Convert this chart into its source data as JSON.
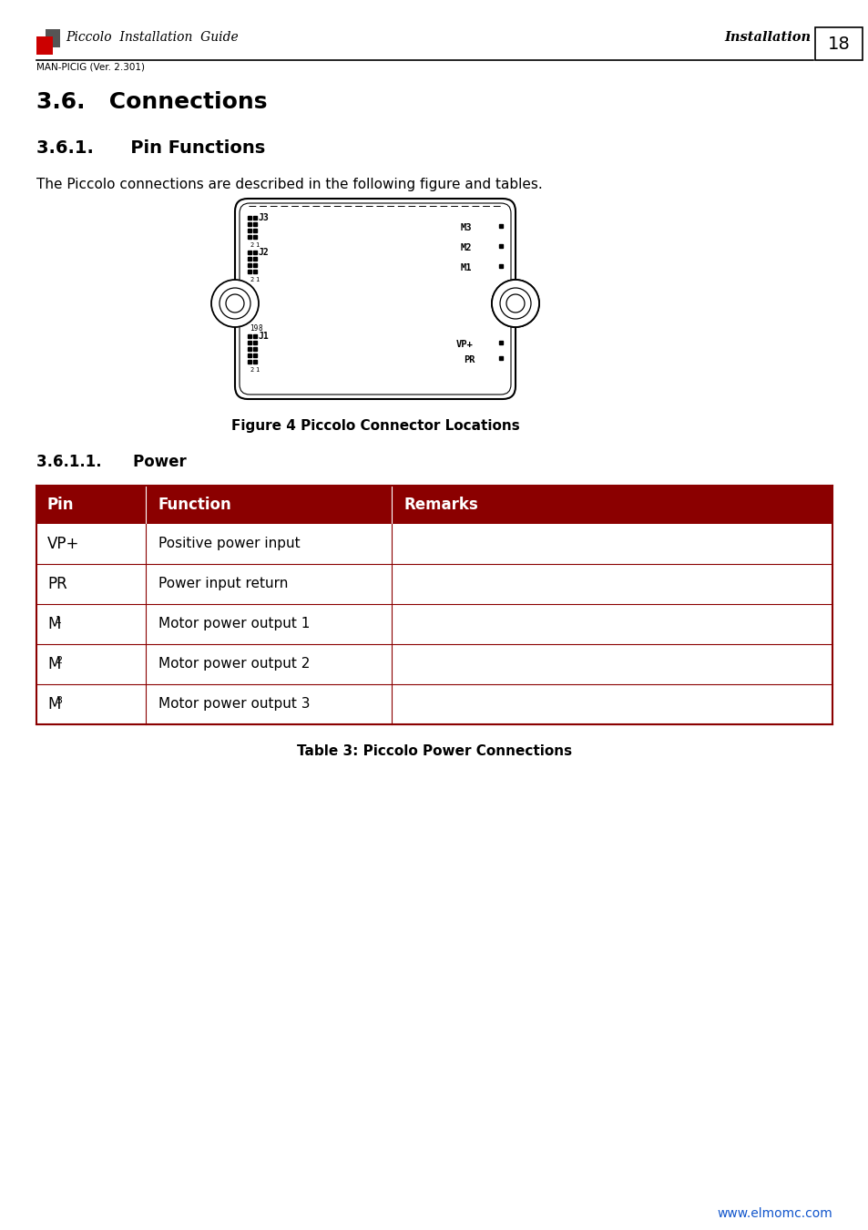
{
  "page_number": "18",
  "header_left_title": "Piccolo  Installation  Guide",
  "header_right": "Installation",
  "header_sub": "MAN-PICIG (Ver. 2.301)",
  "section_title": "3.6.   Connections",
  "subsection_title": "3.6.1.      Pin Functions",
  "intro_text": "The Piccolo connections are described in the following figure and tables.",
  "figure_caption": "Figure 4 Piccolo Connector Locations",
  "subsection2_title": "3.6.1.1.      Power",
  "table_header": [
    "Pin",
    "Function",
    "Remarks"
  ],
  "table_rows": [
    [
      "VP+",
      "Positive power input",
      ""
    ],
    [
      "PR",
      "Power input return",
      ""
    ],
    [
      "M_1",
      "Motor power output 1",
      ""
    ],
    [
      "M_2",
      "Motor power output 2",
      ""
    ],
    [
      "M_3",
      "Motor power output 3",
      ""
    ]
  ],
  "table_caption": "Table 3: Piccolo Power Connections",
  "footer_url": "www.elmomc.com",
  "header_color": "#8B0000",
  "header_text_color": "#FFFFFF",
  "border_color": "#8B0000",
  "bg_color": "#FFFFFF",
  "logo_red": "#CC0000",
  "logo_gray": "#555555"
}
